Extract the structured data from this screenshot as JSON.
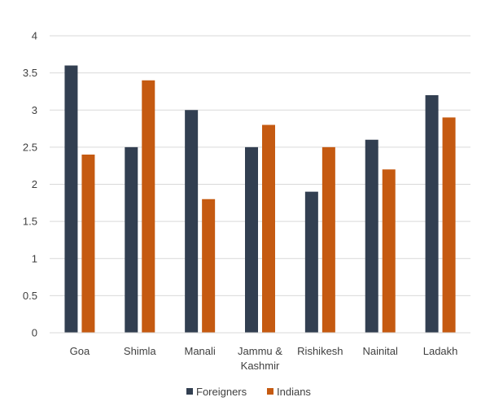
{
  "chart_data": {
    "type": "bar",
    "categories": [
      [
        "Goa"
      ],
      [
        "Shimla"
      ],
      [
        "Manali"
      ],
      [
        "Jammu &",
        "Kashmir"
      ],
      [
        "Rishikesh"
      ],
      [
        "Nainital"
      ],
      [
        "Ladakh"
      ]
    ],
    "series": [
      {
        "name": "Foreigners",
        "color": "#323f51",
        "values": [
          3.6,
          2.5,
          3.0,
          2.5,
          1.9,
          2.6,
          3.2
        ]
      },
      {
        "name": "Indians",
        "color": "#c55a11",
        "values": [
          2.4,
          3.4,
          1.8,
          2.8,
          2.5,
          2.2,
          2.9
        ]
      }
    ],
    "yticks": [
      "0",
      "0.5",
      "1",
      "1.5",
      "2",
      "2.5",
      "3",
      "3.5",
      "4"
    ],
    "ylim": [
      0,
      4
    ],
    "grid": true,
    "legend_position": "bottom",
    "title": "",
    "xlabel": "",
    "ylabel": ""
  }
}
